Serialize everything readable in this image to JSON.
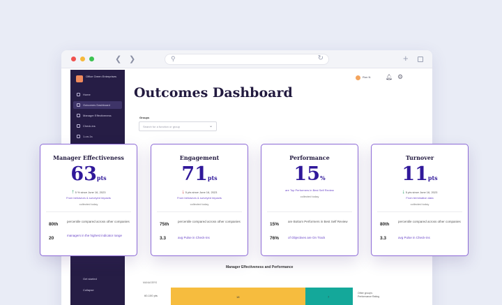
{
  "app": {
    "org_name": "Office Green Enterprises",
    "user_name": "Ron N",
    "title": "Outcomes Dashboard"
  },
  "sidebar": {
    "items": [
      {
        "label": "Home",
        "active": false
      },
      {
        "label": "Outcomes Dashboard",
        "active": true
      },
      {
        "label": "Manager Effectiveness",
        "active": false
      },
      {
        "label": "Check-ins",
        "active": false
      },
      {
        "label": "1-on-1s",
        "active": false
      }
    ],
    "bottom": [
      {
        "label": "Get started"
      },
      {
        "label": "Collapse"
      }
    ]
  },
  "filter": {
    "label": "Groups",
    "placeholder": "Search for a function or group"
  },
  "cards": [
    {
      "title": "Manager Effectiveness",
      "value": "63",
      "unit": "pts",
      "change": "5 % since June 16, 2023",
      "direction": "up",
      "link": "From behaviors & surveyed impacts",
      "sub": "collected today",
      "stats": [
        {
          "num": "80th",
          "text": "percentile compared across other companies",
          "link": false
        },
        {
          "num": "20",
          "text": "managers in the highest indicator range",
          "link": true
        }
      ]
    },
    {
      "title": "Engagement",
      "value": "71",
      "unit": "pts",
      "change": "5 pts since June 16, 2023",
      "direction": "down",
      "link": "From behaviors & surveyed impacts",
      "sub": "collected today",
      "stats": [
        {
          "num": "75th",
          "text": "percentile compared across other companies",
          "link": false
        },
        {
          "num": "3.3",
          "text": "avg Pulse in Check-ins",
          "link": true
        }
      ]
    },
    {
      "title": "Performance",
      "value": "15",
      "unit": "%",
      "change": "",
      "direction": "none",
      "link": "are Top Performers in Best Self Review",
      "sub": "collected today",
      "stats": [
        {
          "num": "15%",
          "text": "are Bottom Performers in Best Self Review",
          "link": false
        },
        {
          "num": "76%",
          "text": "of Objectives are On Track",
          "link": true
        }
      ]
    },
    {
      "title": "Turnover",
      "value": "11",
      "unit": "pts",
      "change": "5 pts since June 16, 2023",
      "direction": "down",
      "link": "From termination data",
      "sub": "collected today",
      "stats": [
        {
          "num": "80th",
          "text": "percentile compared across other companies",
          "link": false
        },
        {
          "num": "3.3",
          "text": "avg Pulse in Check-ins",
          "link": true
        }
      ]
    }
  ],
  "chart": {
    "title": "Manager Effectiveness and Performance",
    "y_top": "MANAGERS",
    "row_label": "60-100 pts",
    "bar1_value": "18",
    "bar2_value": "7",
    "legend": "Other group's Performance Rating",
    "colors": {
      "yellow": "#f6bc3e",
      "teal": "#14a89a"
    }
  },
  "colors": {
    "accent": "#30189a",
    "card_border": "#8c69d6",
    "sidebar": "#261d45"
  }
}
